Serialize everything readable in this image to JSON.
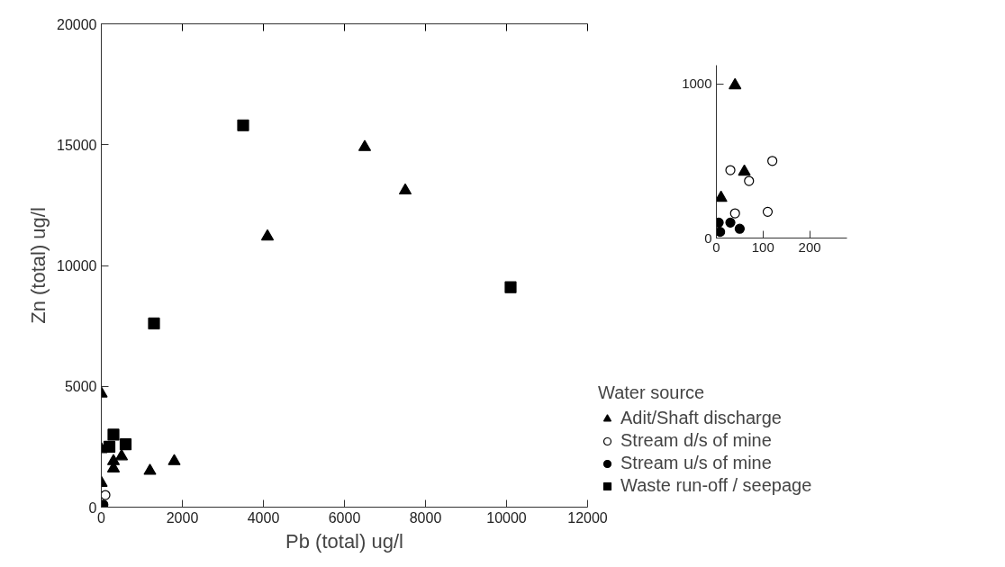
{
  "chart_data": [
    {
      "type": "scatter",
      "xlabel": "Pb (total) ug/l",
      "ylabel": "Zn (total) ug/l",
      "legend_title": "Water source",
      "legend": "right",
      "grid": false,
      "xlim": [
        0,
        12000
      ],
      "xticks": [
        0,
        2000,
        4000,
        6000,
        8000,
        10000,
        12000
      ],
      "ylim": [
        0,
        20000
      ],
      "yticks": [
        0,
        5000,
        10000,
        15000,
        20000
      ],
      "series": [
        {
          "name": "Adit/Shaft discharge",
          "marker": "triangle",
          "color": "#000000",
          "x": [
            6500,
            7500,
            4100,
            1800,
            1200,
            0,
            500,
            300,
            300,
            0,
            0
          ],
          "values": [
            14900,
            13100,
            11200,
            1900,
            1500,
            4700,
            2100,
            1900,
            1600,
            2400,
            1000
          ]
        },
        {
          "name": "Stream d/s of mine",
          "marker": "circle",
          "color": "#ffffff",
          "x": [
            100
          ],
          "values": [
            500
          ]
        },
        {
          "name": "Stream u/s of mine",
          "marker": "circle",
          "color": "#000000",
          "x": [
            50
          ],
          "values": [
            100
          ]
        },
        {
          "name": "Waste run-off / seepage",
          "marker": "square",
          "color": "#000000",
          "x": [
            3500,
            10100,
            1300,
            300,
            600,
            200
          ],
          "values": [
            15800,
            9100,
            7600,
            3000,
            2600,
            2500
          ]
        }
      ]
    },
    {
      "type": "scatter",
      "grid": false,
      "xlim": [
        0,
        280
      ],
      "xticks": [
        0,
        100,
        200
      ],
      "ylim": [
        0,
        1120
      ],
      "yticks": [
        0,
        1000
      ],
      "series": [
        {
          "marker": "triangle",
          "color": "#000000",
          "x": [
            40,
            60,
            10
          ],
          "values": [
            990,
            430,
            260
          ]
        },
        {
          "marker": "circle",
          "color": "#ffffff",
          "x": [
            30,
            70,
            120,
            40,
            110
          ],
          "values": [
            440,
            370,
            500,
            160,
            170
          ]
        },
        {
          "marker": "circle",
          "color": "#000000",
          "x": [
            30,
            50,
            5,
            8
          ],
          "values": [
            100,
            60,
            100,
            40
          ]
        }
      ]
    }
  ]
}
